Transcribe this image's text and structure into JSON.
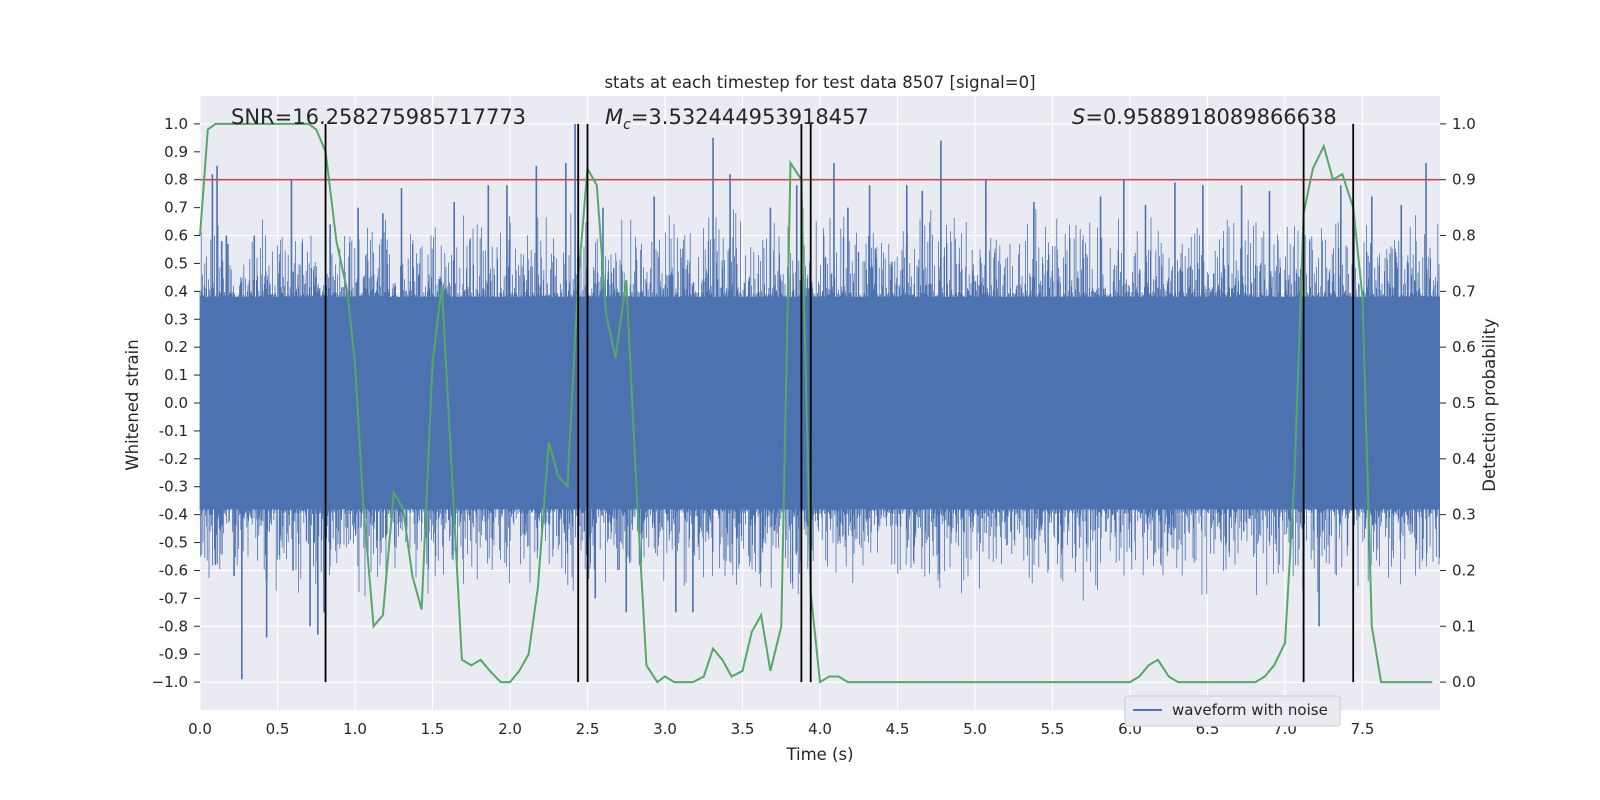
{
  "chart_data": {
    "type": "line",
    "title": "stats at each timestep for test data 8507 [signal=0]",
    "xlabel": "Time (s)",
    "ylabel": "Whitened strain",
    "ylabel_right": "Detection probability",
    "xlim": [
      0.0,
      8.0
    ],
    "ylim": [
      -1.1,
      1.1
    ],
    "ylim_right": [
      -0.05,
      1.05
    ],
    "xticks": [
      "0.0",
      "0.5",
      "1.0",
      "1.5",
      "2.0",
      "2.5",
      "3.0",
      "3.5",
      "4.0",
      "4.5",
      "5.0",
      "5.5",
      "6.0",
      "6.5",
      "7.0",
      "7.5"
    ],
    "xtick_values": [
      0,
      0.5,
      1,
      1.5,
      2,
      2.5,
      3,
      3.5,
      4,
      4.5,
      5,
      5.5,
      6,
      6.5,
      7,
      7.5
    ],
    "yticks": [
      "1.0",
      "0.9",
      "0.8",
      "0.7",
      "0.6",
      "0.5",
      "0.4",
      "0.3",
      "0.2",
      "0.1",
      "0.0",
      "-0.1",
      "-0.2",
      "-0.3",
      "-0.4",
      "-0.5",
      "-0.6",
      "-0.7",
      "-0.8",
      "-0.9",
      "−1.0"
    ],
    "ytick_values": [
      1,
      0.9,
      0.8,
      0.7,
      0.6,
      0.5,
      0.4,
      0.3,
      0.2,
      0.1,
      0,
      -0.1,
      -0.2,
      -0.3,
      -0.4,
      -0.5,
      -0.6,
      -0.7,
      -0.8,
      -0.9,
      -1.0
    ],
    "yticks_right": [
      "1.0",
      "0.9",
      "0.8",
      "0.7",
      "0.6",
      "0.5",
      "0.4",
      "0.3",
      "0.2",
      "0.1",
      "0.0"
    ],
    "ytick_right_values": [
      1.0,
      0.9,
      0.8,
      0.7,
      0.6,
      0.5,
      0.4,
      0.3,
      0.2,
      0.1,
      0.0
    ],
    "annotations": {
      "snr": "SNR=16.258275985717773",
      "mc_symbol": "M",
      "mc_sub": "c",
      "mc_value": "=3.532444953918457",
      "s_symbol": "S",
      "s_value": "=0.9588918089866638"
    },
    "threshold": {
      "value": 0.9,
      "axis": "right",
      "color": "#c44e52"
    },
    "vertical_lines": [
      0.81,
      2.44,
      2.5,
      3.88,
      3.94,
      7.12,
      7.44
    ],
    "vertical_range": [
      -1.0,
      1.0
    ],
    "legend": {
      "label": "waveform with noise",
      "location": "lower-right"
    },
    "series": [
      {
        "name": "waveform with noise",
        "axis": "left",
        "color": "#4c72b0",
        "kind": "noise",
        "core_band": [
          -0.38,
          0.38
        ],
        "typical_peak": [
          0.55,
          0.72
        ],
        "spikes": [
          {
            "x": 0.08,
            "y": 0.82
          },
          {
            "x": 0.1,
            "y": -0.58
          },
          {
            "x": 0.14,
            "y": 0.58
          },
          {
            "x": 0.18,
            "y": 0.57
          },
          {
            "x": 0.1,
            "y": -0.57
          },
          {
            "x": 0.22,
            "y": -0.62
          },
          {
            "x": 0.27,
            "y": -0.99
          },
          {
            "x": 0.11,
            "y": 0.85
          },
          {
            "x": 0.17,
            "y": 0.6
          },
          {
            "x": 0.35,
            "y": 0.6
          },
          {
            "x": 0.43,
            "y": -0.84
          },
          {
            "x": 0.59,
            "y": 0.8
          },
          {
            "x": 0.6,
            "y": -0.6
          },
          {
            "x": 0.71,
            "y": -0.8
          },
          {
            "x": 0.76,
            "y": -0.83
          },
          {
            "x": 0.8,
            "y": -0.75
          },
          {
            "x": 0.84,
            "y": 0.64
          },
          {
            "x": 1.02,
            "y": 0.7
          },
          {
            "x": 1.18,
            "y": 0.68
          },
          {
            "x": 1.3,
            "y": 0.77
          },
          {
            "x": 1.64,
            "y": 0.72
          },
          {
            "x": 1.86,
            "y": 0.78
          },
          {
            "x": 1.98,
            "y": 0.78
          },
          {
            "x": 2.17,
            "y": 0.85
          },
          {
            "x": 2.36,
            "y": 0.86
          },
          {
            "x": 2.42,
            "y": 1.0
          },
          {
            "x": 2.55,
            "y": -0.7
          },
          {
            "x": 2.6,
            "y": 0.7
          },
          {
            "x": 2.75,
            "y": -0.75
          },
          {
            "x": 2.93,
            "y": 0.74
          },
          {
            "x": 3.07,
            "y": -0.75
          },
          {
            "x": 3.18,
            "y": -0.75
          },
          {
            "x": 3.31,
            "y": 0.95
          },
          {
            "x": 3.42,
            "y": 0.82
          },
          {
            "x": 3.68,
            "y": 0.7
          },
          {
            "x": 3.85,
            "y": 0.78
          },
          {
            "x": 4.09,
            "y": 0.86
          },
          {
            "x": 4.18,
            "y": 0.7
          },
          {
            "x": 4.32,
            "y": 0.78
          },
          {
            "x": 4.56,
            "y": 0.78
          },
          {
            "x": 4.66,
            "y": 0.76
          },
          {
            "x": 4.78,
            "y": 0.94
          },
          {
            "x": 5.07,
            "y": 0.8
          },
          {
            "x": 5.38,
            "y": 0.72
          },
          {
            "x": 5.81,
            "y": 0.74
          },
          {
            "x": 5.96,
            "y": 0.8
          },
          {
            "x": 6.1,
            "y": 0.71
          },
          {
            "x": 6.29,
            "y": 0.79
          },
          {
            "x": 6.47,
            "y": 0.78
          },
          {
            "x": 6.72,
            "y": 0.78
          },
          {
            "x": 6.9,
            "y": 0.76
          },
          {
            "x": 7.12,
            "y": -0.83
          },
          {
            "x": 7.22,
            "y": -0.8
          },
          {
            "x": 7.36,
            "y": 0.78
          },
          {
            "x": 7.56,
            "y": 0.74
          },
          {
            "x": 7.75,
            "y": 0.71
          },
          {
            "x": 7.91,
            "y": 0.86
          }
        ]
      },
      {
        "name": "detection probability",
        "axis": "right",
        "color": "#55a868",
        "x": [
          0.0,
          0.05,
          0.1,
          0.2,
          0.3,
          0.4,
          0.5,
          0.6,
          0.7,
          0.75,
          0.81,
          0.88,
          0.95,
          1.0,
          1.05,
          1.12,
          1.18,
          1.25,
          1.31,
          1.37,
          1.43,
          1.5,
          1.56,
          1.62,
          1.69,
          1.75,
          1.81,
          1.87,
          1.94,
          2.0,
          2.06,
          2.12,
          2.18,
          2.25,
          2.31,
          2.37,
          2.44,
          2.5,
          2.56,
          2.62,
          2.68,
          2.75,
          2.81,
          2.88,
          2.95,
          3.0,
          3.06,
          3.12,
          3.18,
          3.25,
          3.31,
          3.37,
          3.43,
          3.5,
          3.56,
          3.62,
          3.68,
          3.75,
          3.81,
          3.88,
          3.94,
          4.0,
          4.06,
          4.12,
          4.18,
          4.25,
          4.31,
          4.37,
          4.43,
          4.5,
          4.56,
          4.62,
          4.68,
          4.75,
          4.81,
          4.87,
          4.93,
          5.0,
          5.1,
          5.25,
          5.5,
          5.75,
          5.81,
          5.87,
          5.93,
          6.0,
          6.06,
          6.12,
          6.18,
          6.25,
          6.31,
          6.37,
          6.5,
          6.62,
          6.68,
          6.75,
          6.81,
          6.87,
          6.93,
          7.0,
          7.06,
          7.12,
          7.18,
          7.25,
          7.31,
          7.37,
          7.44,
          7.5,
          7.56,
          7.62,
          7.75,
          7.95
        ],
        "y": [
          0.8,
          0.99,
          1.0,
          1.0,
          1.0,
          1.0,
          1.0,
          1.0,
          1.0,
          0.99,
          0.95,
          0.79,
          0.7,
          0.57,
          0.33,
          0.1,
          0.12,
          0.34,
          0.31,
          0.19,
          0.13,
          0.57,
          0.71,
          0.4,
          0.04,
          0.03,
          0.04,
          0.02,
          0.0,
          0.0,
          0.02,
          0.05,
          0.17,
          0.43,
          0.37,
          0.35,
          0.72,
          0.92,
          0.89,
          0.66,
          0.58,
          0.72,
          0.38,
          0.03,
          0.0,
          0.01,
          0.0,
          0.0,
          0.0,
          0.01,
          0.06,
          0.04,
          0.01,
          0.02,
          0.09,
          0.12,
          0.02,
          0.1,
          0.93,
          0.9,
          0.16,
          0.0,
          0.01,
          0.01,
          0.0,
          0.0,
          0.0,
          0.0,
          0.0,
          0.0,
          0.0,
          0.0,
          0.0,
          0.0,
          0.0,
          0.0,
          0.0,
          0.0,
          0.0,
          0.0,
          0.0,
          0.0,
          0.0,
          0.0,
          0.0,
          0.0,
          0.01,
          0.03,
          0.04,
          0.01,
          0.0,
          0.0,
          0.0,
          0.0,
          0.0,
          0.0,
          0.0,
          0.01,
          0.03,
          0.07,
          0.36,
          0.84,
          0.92,
          0.96,
          0.9,
          0.91,
          0.85,
          0.69,
          0.1,
          0.0,
          0.0,
          0.0
        ]
      }
    ]
  }
}
